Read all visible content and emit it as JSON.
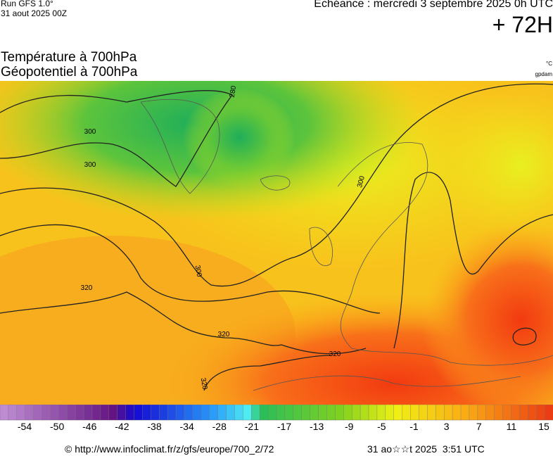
{
  "header": {
    "run": "Run GFS 1.0°",
    "run_date": "31 aout 2025 00Z",
    "valid_time": "Echéance : mercredi 3 septembre 2025 0h UTC",
    "lead_time": "+ 72H"
  },
  "titles": {
    "line1": "Température à 700hPa",
    "line2": "Géopotentiel à 700hPa",
    "unit_temperature": "°C",
    "unit_geopotential": "gpdam"
  },
  "contour_labels": [
    "280",
    "300",
    "300",
    "300",
    "300",
    "320",
    "320",
    "320",
    "320"
  ],
  "colorbar": {
    "labels": [
      -54,
      -50,
      -46,
      -42,
      -38,
      -34,
      -28,
      -21,
      -17,
      -13,
      -9,
      -5,
      -1,
      3,
      7,
      11,
      15
    ]
  },
  "footer": {
    "source": "© http://www.infoclimat.fr/z/gfs/europe/700_2/72",
    "generated": "31 ao☆☆t 2025  3:51 UTC"
  }
}
